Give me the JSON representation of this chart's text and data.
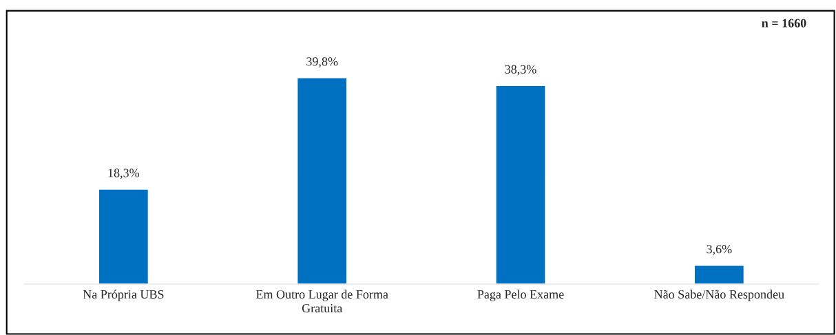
{
  "chart_data": {
    "type": "bar",
    "categories": [
      "Na Própria UBS",
      "Em Outro Lugar de Forma\nGratuita",
      "Paga Pelo Exame",
      "Não Sabe/Não Respondeu"
    ],
    "values": [
      18.3,
      39.8,
      38.3,
      3.6
    ],
    "value_labels": [
      "18,3%",
      "39,8%",
      "38,3%",
      "3,6%"
    ],
    "color": "#0070c0",
    "ylim": [
      0,
      52.8
    ],
    "annotations": [
      "n = 1660"
    ]
  }
}
